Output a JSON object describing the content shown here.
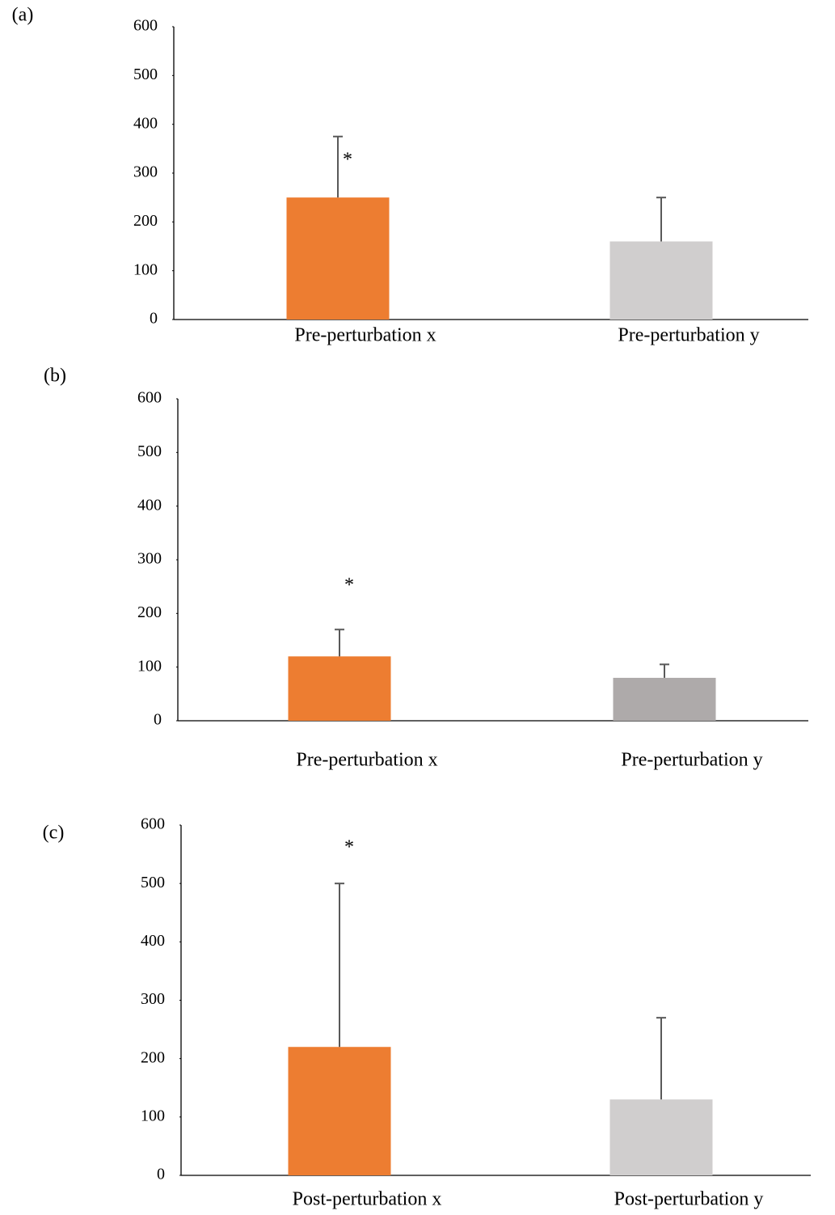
{
  "chart_data": [
    {
      "type": "bar",
      "label": "(a)",
      "categories": [
        "Pre-perturbation x",
        "Pre-perturbation y"
      ],
      "values": [
        250,
        160
      ],
      "errors": [
        125,
        90
      ],
      "colors": [
        "#ed7d31",
        "#d0cece"
      ],
      "ylim": [
        0,
        600
      ],
      "yticks": [
        0,
        100,
        200,
        300,
        400,
        500,
        600
      ],
      "annotations": [
        {
          "text": "*",
          "x": "Pre-perturbation x",
          "y": 325
        }
      ]
    },
    {
      "type": "bar",
      "label": "(b)",
      "categories": [
        "Pre-perturbation x",
        "Pre-perturbation y"
      ],
      "values": [
        120,
        80
      ],
      "errors": [
        50,
        25
      ],
      "colors": [
        "#ed7d31",
        "#aeaaaa"
      ],
      "ylim": [
        0,
        600
      ],
      "yticks": [
        0,
        100,
        200,
        300,
        400,
        500,
        600
      ],
      "annotations": [
        {
          "text": "*",
          "x": "Pre-perturbation x",
          "y": 250
        }
      ]
    },
    {
      "type": "bar",
      "label": "(c)",
      "categories": [
        "Post-perturbation x",
        "Post-perturbation y"
      ],
      "values": [
        220,
        130
      ],
      "errors": [
        280,
        140
      ],
      "colors": [
        "#ed7d31",
        "#d0cece"
      ],
      "ylim": [
        0,
        600
      ],
      "yticks": [
        0,
        100,
        200,
        300,
        400,
        500,
        600
      ],
      "annotations": [
        {
          "text": "*",
          "x": "Post-perturbation x",
          "y": 560
        }
      ]
    }
  ]
}
